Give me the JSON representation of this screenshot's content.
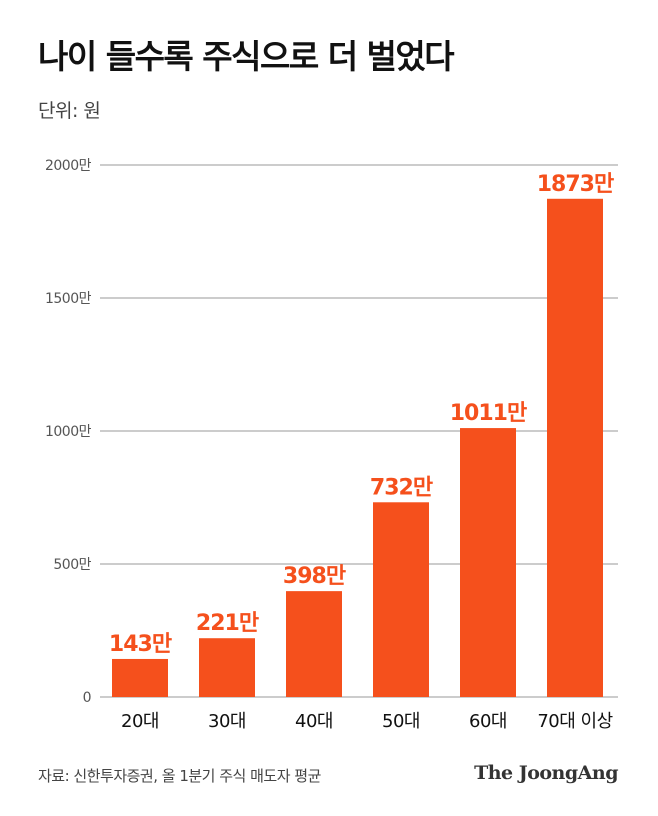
{
  "header": {
    "title": "나이 들수록 주식으로 더 벌었다",
    "unit_label": "단위: 원"
  },
  "footer": {
    "source": "자료: 신한투자증권, 올 1분기 주식 매도자 평균",
    "logo_text": "The JoongAng"
  },
  "colors": {
    "bar": "#f5501c",
    "label": "#f5501c",
    "grid": "#9a9a9a"
  },
  "chart_data": {
    "type": "bar",
    "title": "나이 들수록 주식으로 더 벌었다",
    "ylabel": "단위: 원",
    "categories": [
      "20대",
      "30대",
      "40대",
      "50대",
      "60대",
      "70대 이상"
    ],
    "values": [
      143,
      221,
      398,
      732,
      1011,
      1873
    ],
    "value_labels": [
      "143만",
      "221만",
      "398만",
      "732만",
      "1011만",
      "1873만"
    ],
    "yticks": [
      0,
      500,
      1000,
      1500,
      2000
    ],
    "ytick_labels": [
      "0",
      "500만",
      "1000만",
      "1500만",
      "2000만"
    ],
    "ylim": [
      0,
      2000
    ],
    "grid": true,
    "legend": "none"
  }
}
